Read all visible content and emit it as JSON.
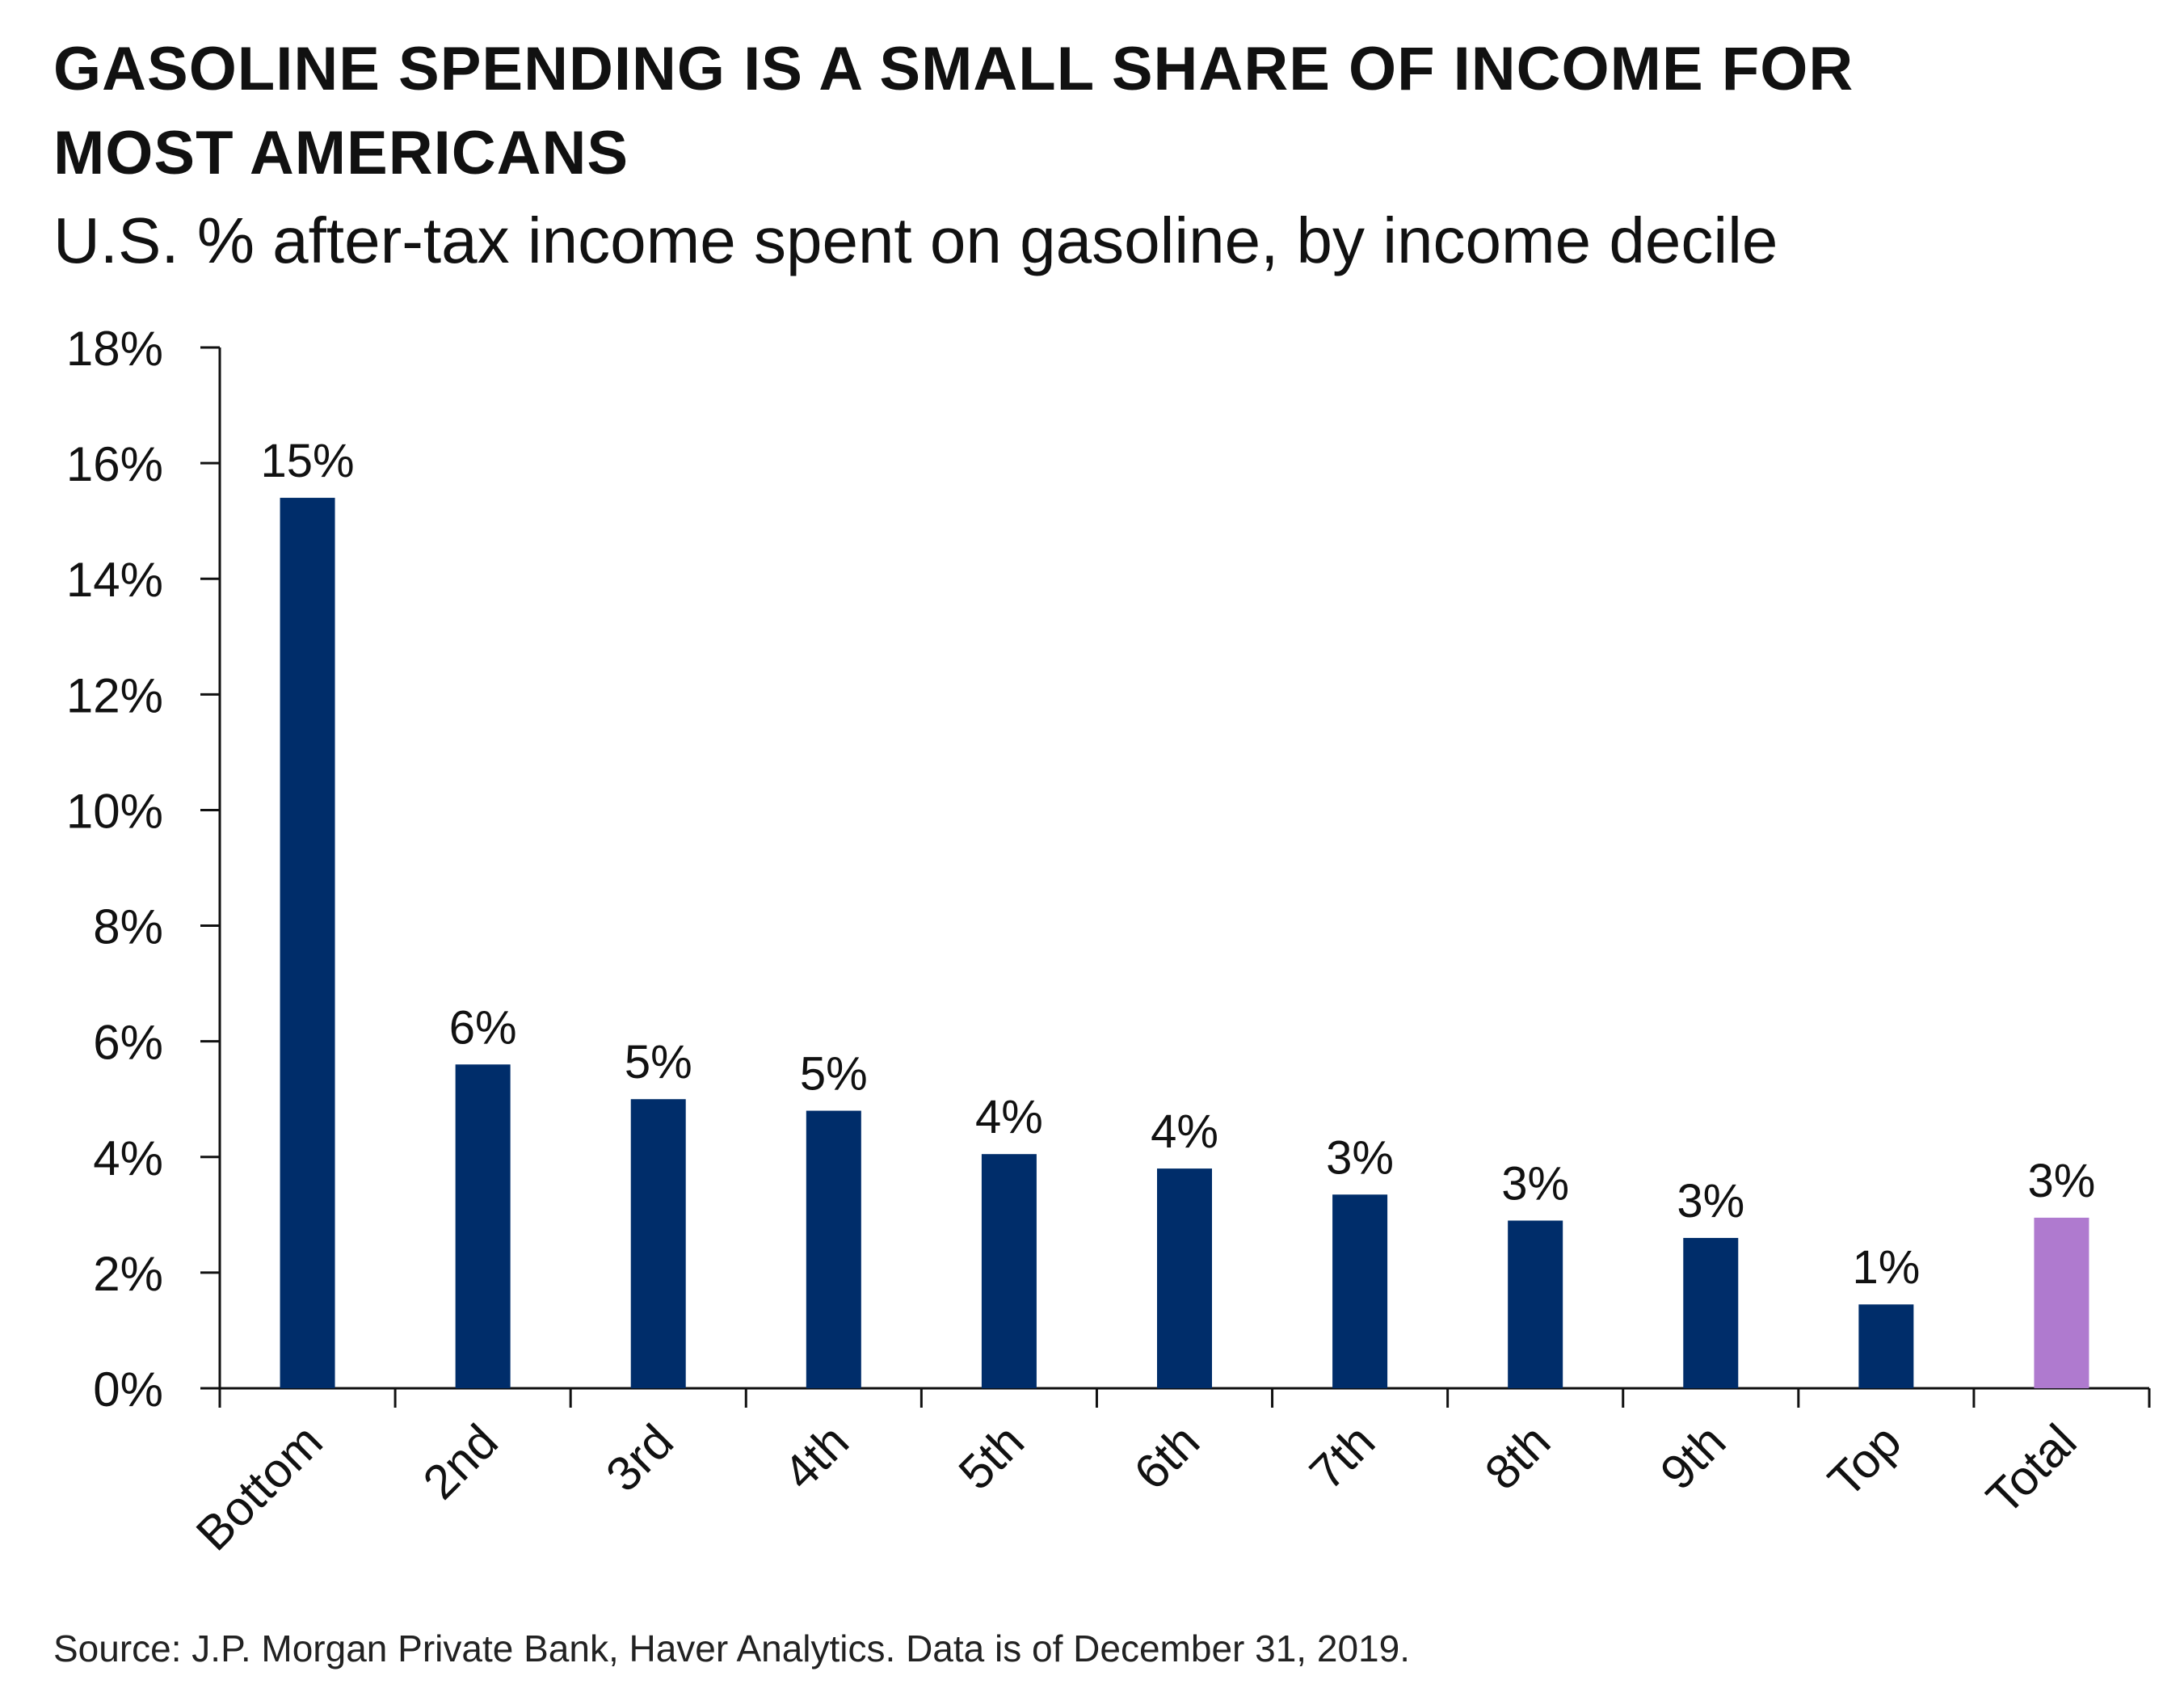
{
  "header": {
    "title": "GASOLINE SPENDING IS A SMALL SHARE OF INCOME FOR MOST AMERICANS",
    "subtitle": "U.S. % after-tax income spent on gasoline, by income decile"
  },
  "footer": {
    "source": "Source: J.P. Morgan Private Bank, Haver Analytics. Data is of December 31, 2019."
  },
  "chart_data": {
    "type": "bar",
    "title": "GASOLINE SPENDING IS A SMALL SHARE OF INCOME FOR MOST AMERICANS",
    "subtitle": "U.S. % after-tax income spent on gasoline, by income decile",
    "xlabel": "",
    "ylabel": "",
    "categories": [
      "Bottom",
      "2nd",
      "3rd",
      "4th",
      "5th",
      "6th",
      "7th",
      "8th",
      "9th",
      "Top",
      "Total"
    ],
    "values": [
      15.4,
      5.6,
      5.0,
      4.8,
      4.05,
      3.8,
      3.35,
      2.9,
      2.6,
      1.45,
      2.95
    ],
    "data_labels": [
      "15%",
      "6%",
      "5%",
      "5%",
      "4%",
      "4%",
      "3%",
      "3%",
      "3%",
      "1%",
      "3%"
    ],
    "ylim": [
      0,
      18
    ],
    "yticks": [
      0,
      2,
      4,
      6,
      8,
      10,
      12,
      14,
      16,
      18
    ],
    "ytick_labels": [
      "0%",
      "2%",
      "4%",
      "6%",
      "8%",
      "10%",
      "12%",
      "14%",
      "16%",
      "18%"
    ],
    "colors": {
      "decile": "#002d6a",
      "total": "#af7acf"
    },
    "highlight_category": "Total",
    "grid": false,
    "legend": "none"
  }
}
